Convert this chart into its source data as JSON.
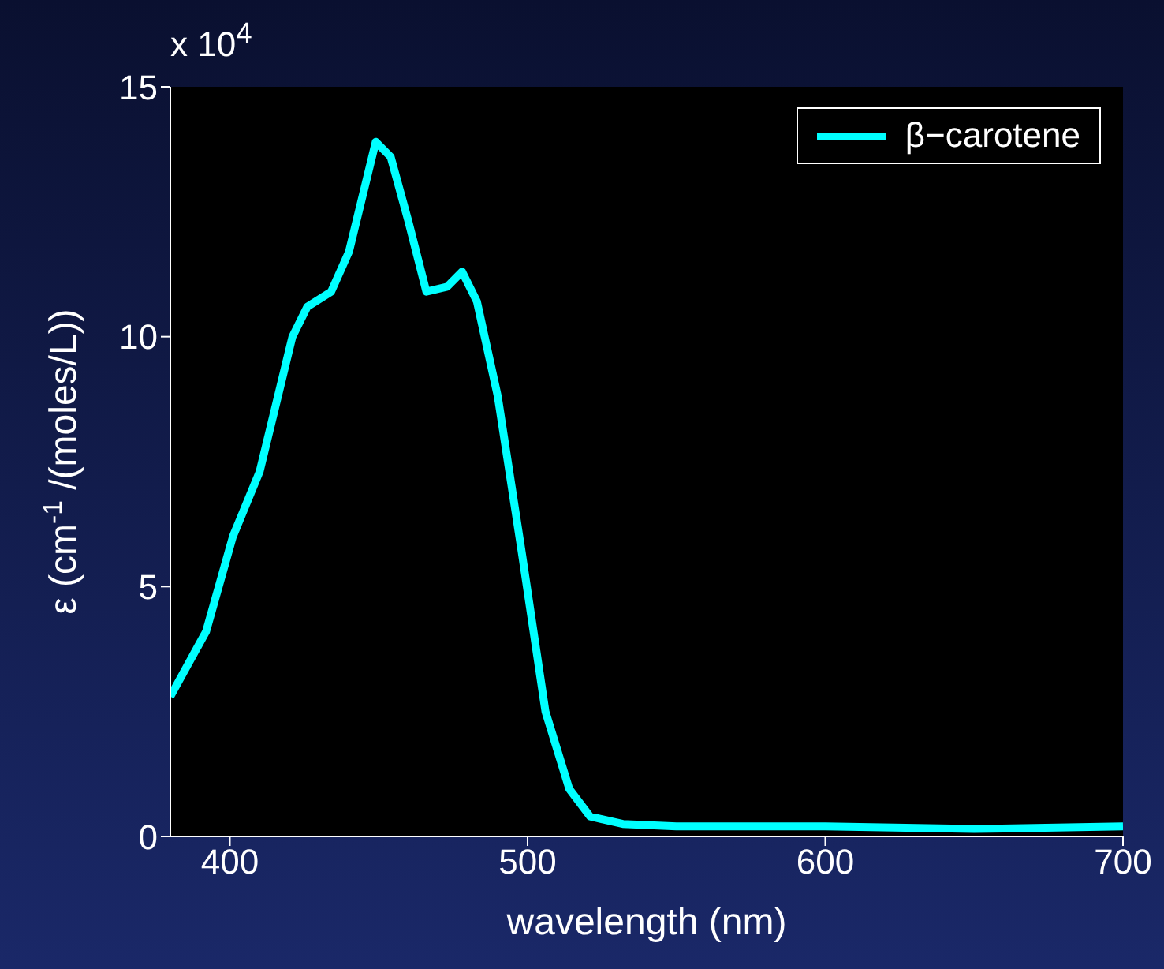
{
  "chart_data": {
    "type": "line",
    "xlabel": "wavelength (nm)",
    "ylabel": "ε (cm$^{-1}$/(moles/L))",
    "annotations": [
      "x 10$^{4}$"
    ],
    "legend": "top right",
    "grid": false,
    "xlim": [
      380,
      700
    ],
    "xticks": [
      400,
      500,
      600,
      700
    ],
    "ylim": [
      0,
      15
    ],
    "yticks": [
      0,
      5,
      10,
      15
    ],
    "series": [
      {
        "name": "β−carotene",
        "color": "#00ffff",
        "x": [
          380,
          392,
          401,
          410,
          421,
          426,
          434,
          440,
          449,
          454,
          460,
          466,
          473,
          478,
          483,
          490,
          498,
          506,
          514,
          521,
          532,
          550,
          600,
          650,
          700
        ],
        "values": [
          2.8,
          4.1,
          6.0,
          7.3,
          10.0,
          10.6,
          10.9,
          11.7,
          13.9,
          13.6,
          12.3,
          10.9,
          11.0,
          11.3,
          10.7,
          8.8,
          5.7,
          2.5,
          0.95,
          0.4,
          0.25,
          0.2,
          0.2,
          0.15,
          0.2
        ]
      }
    ]
  }
}
